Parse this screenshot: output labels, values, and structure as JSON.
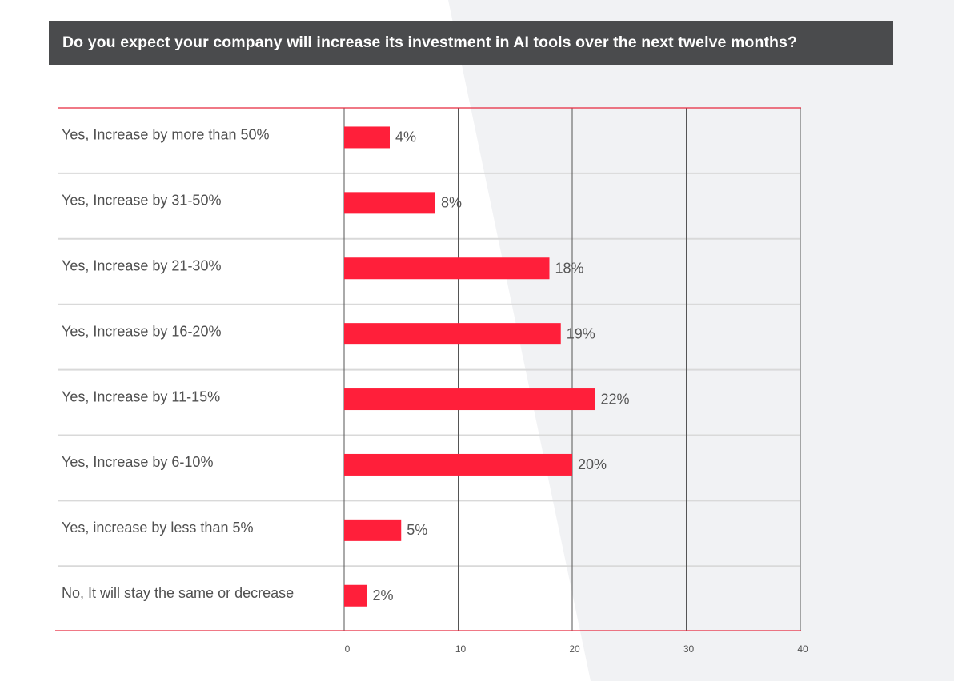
{
  "colors": {
    "bar": "#ff1f3a",
    "title_background": "#4a4b4d",
    "title_text": "#ffffff",
    "accent_line": "#e8293f",
    "grid_line": "#555555",
    "row_divider": "#d9d9d9",
    "background_shape": "#f1f2f4"
  },
  "chart_data": {
    "type": "bar",
    "orientation": "horizontal",
    "title": "Do you expect your company will increase its investment in AI tools over the next twelve months?",
    "categories": [
      "Yes, Increase by more than 50%",
      "Yes, Increase by 31-50%",
      "Yes, Increase by 21-30%",
      "Yes, Increase by 16-20%",
      "Yes, Increase by 11-15%",
      "Yes, Increase by 6-10%",
      "Yes, increase by less than 5%",
      "No, It will stay the same or decrease"
    ],
    "values": [
      4,
      8,
      18,
      19,
      22,
      20,
      5,
      2
    ],
    "value_labels": [
      "4%",
      "8%",
      "18%",
      "19%",
      "22%",
      "20%",
      "5%",
      "2%"
    ],
    "xlim": [
      0,
      40
    ],
    "xticks": [
      "0",
      "10",
      "20",
      "30",
      "40"
    ],
    "xlabel": "",
    "ylabel": "",
    "grid": true,
    "legend": "none"
  }
}
